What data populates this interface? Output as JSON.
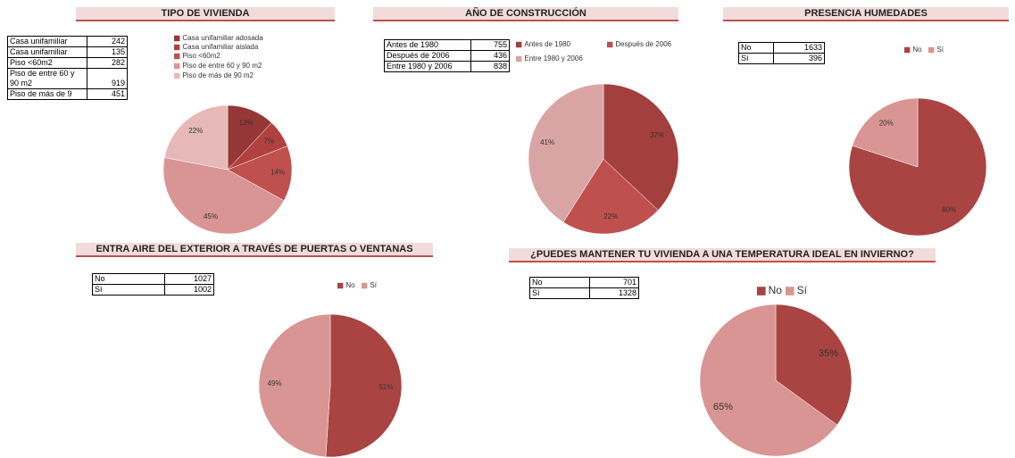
{
  "chart_data": [
    {
      "type": "pie",
      "title": "TIPO DE VIVIENDA",
      "categories": [
        "Casa unifamiliar  adosada",
        "Casa unifamiliar  aislada",
        "Piso <60m2",
        "Piso de entre 60 y 90 m2",
        "Piso de más de 90 m2"
      ],
      "values": [
        12,
        7,
        14,
        45,
        22
      ],
      "value_labels": [
        "12%",
        "7%",
        "14%",
        "45%",
        "22%"
      ],
      "colors": [
        "#953735",
        "#b0413e",
        "#c0504d",
        "#d99594",
        "#e6b9b8"
      ],
      "table": {
        "rows": [
          {
            "label": "Casa unifamiliar",
            "value": 242
          },
          {
            "label": "Casa unifamiliar",
            "value": 135
          },
          {
            "label": "Piso <60m2",
            "value": 282
          },
          {
            "label": "Piso de entre 60 y 90 m2",
            "value": 919
          },
          {
            "label": "Piso de más de 9",
            "value": 451
          }
        ]
      }
    },
    {
      "type": "pie",
      "title": "AÑO DE CONSTRUCCIÓN",
      "categories": [
        "Antes de 1980",
        "Después de 2006",
        "Entre 1980 y 2006"
      ],
      "values": [
        37,
        22,
        41
      ],
      "value_labels": [
        "37%",
        "22%",
        "41%"
      ],
      "colors": [
        "#a33f3d",
        "#c0504d",
        "#d9a5a4"
      ],
      "table": {
        "rows": [
          {
            "label": "Antes de 1980",
            "value": 755
          },
          {
            "label": "Después de 2006",
            "value": 436
          },
          {
            "label": "Entre 1980 y 2006",
            "value": 838
          }
        ]
      }
    },
    {
      "type": "pie",
      "title": "PRESENCIA HUMEDADES",
      "categories": [
        "No",
        "Sí"
      ],
      "values": [
        80,
        20
      ],
      "value_labels": [
        "80%",
        "20%"
      ],
      "colors": [
        "#a94442",
        "#d99594"
      ],
      "table": {
        "rows": [
          {
            "label": "No",
            "value": 1633
          },
          {
            "label": "Sí",
            "value": 396
          }
        ]
      }
    },
    {
      "type": "pie",
      "title": "ENTRA AIRE DEL EXTERIOR A TRAVÉS DE PUERTAS O VENTANAS",
      "categories": [
        "No",
        "Sí"
      ],
      "values": [
        51,
        49
      ],
      "value_labels": [
        "51%",
        "49%"
      ],
      "colors": [
        "#a94442",
        "#d99594"
      ],
      "table": {
        "rows": [
          {
            "label": "No",
            "value": 1027
          },
          {
            "label": "Sí",
            "value": 1002
          }
        ]
      }
    },
    {
      "type": "pie",
      "title": "¿PUEDES MANTENER TU VIVIENDA A UNA TEMPERATURA IDEAL EN INVIERNO?",
      "categories": [
        "No",
        "Sí"
      ],
      "values": [
        35,
        65
      ],
      "value_labels": [
        "35%",
        "65%"
      ],
      "colors": [
        "#a94442",
        "#d99594"
      ],
      "table": {
        "rows": [
          {
            "label": "No",
            "value": 701
          },
          {
            "label": "Sí",
            "value": 1328
          }
        ]
      }
    }
  ]
}
